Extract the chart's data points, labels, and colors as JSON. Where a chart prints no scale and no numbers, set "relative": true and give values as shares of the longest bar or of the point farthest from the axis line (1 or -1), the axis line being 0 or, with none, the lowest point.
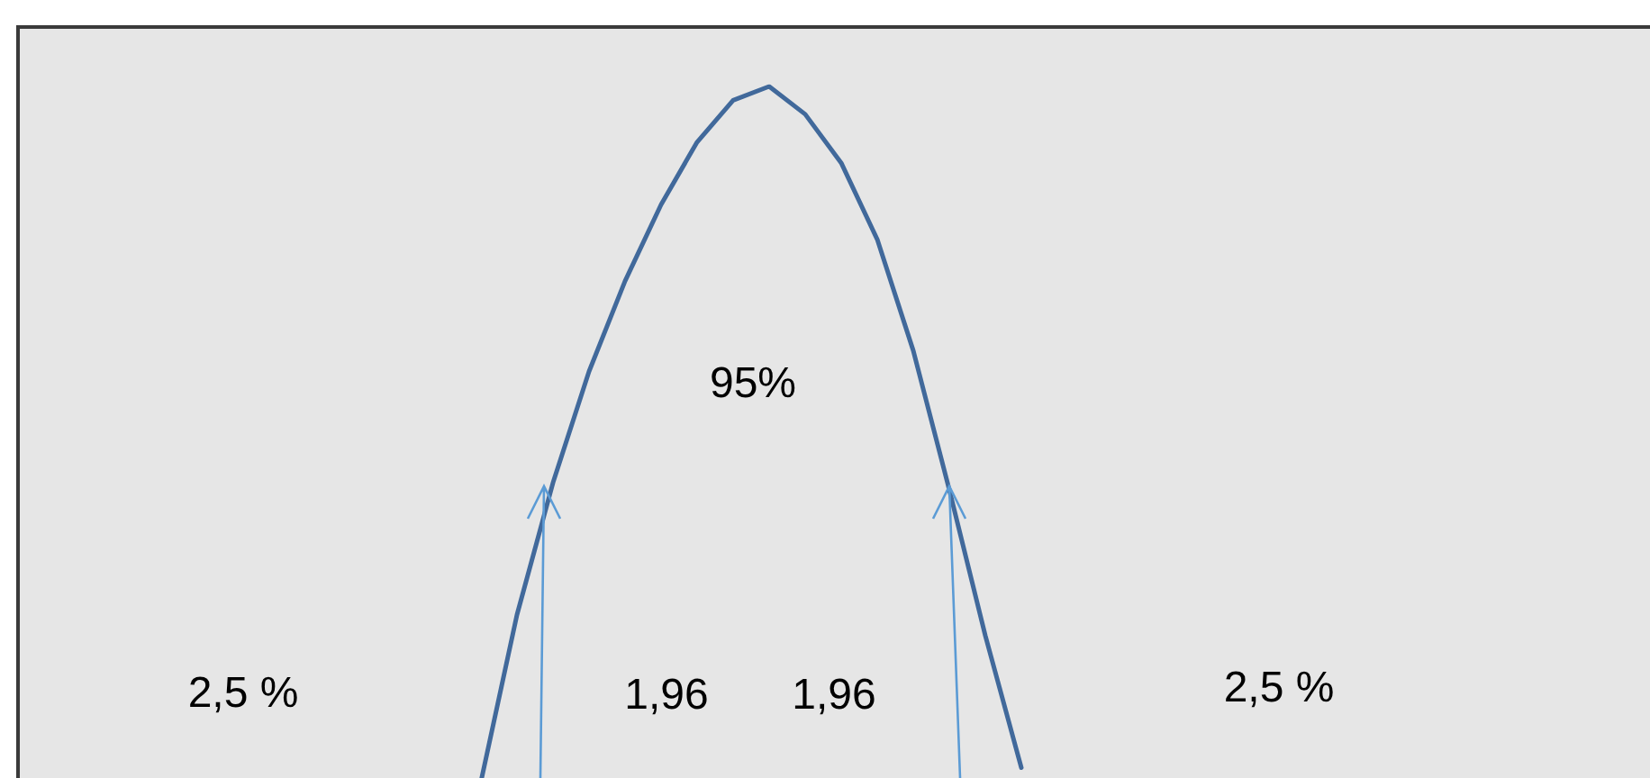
{
  "chart_data": {
    "type": "line",
    "relative": true,
    "marker": "none",
    "categories": [
      null,
      null,
      null,
      null,
      null,
      null,
      null,
      null,
      null,
      null,
      null,
      null,
      null,
      null,
      null,
      null
    ],
    "series": [
      {
        "color": "#41699b",
        "values": [
          0,
          0.24,
          0.43,
          0.59,
          0.72,
          0.83,
          0.92,
          0.98,
          1,
          0.96,
          0.89,
          0.78,
          0.62,
          0.42,
          0.21,
          0.02
        ]
      }
    ],
    "annotations": [
      "95%",
      "2,5 %",
      "1,96",
      "1,96",
      "2,5 %"
    ]
  }
}
